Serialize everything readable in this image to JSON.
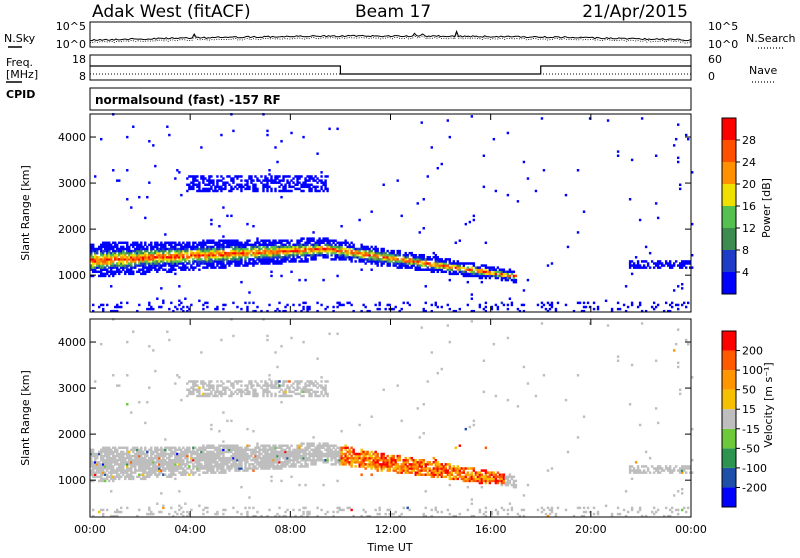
{
  "header": {
    "station": "Adak West (fitACF)",
    "beam": "Beam 17",
    "date": "21/Apr/2015"
  },
  "noise_panel": {
    "left_label": "N.Sky",
    "right_label": "N.Search",
    "left_ticks": [
      "10^5",
      "10^0"
    ],
    "right_ticks": [
      "10^5",
      "10^0"
    ]
  },
  "freq_panel": {
    "left_label_line1": "Freq.",
    "left_label_line2": "[MHz]",
    "right_label": "Nave",
    "left_ticks": [
      "18",
      "8"
    ],
    "right_ticks": [
      "60",
      "0"
    ],
    "cpid_label": "CPID",
    "cpid_text": "normalsound (fast) -157 RF"
  },
  "colors": {
    "power": [
      "#0000ff",
      "#1e3cc8",
      "#3c8c50",
      "#55c050",
      "#f0e000",
      "#ff9000",
      "#ff5000",
      "#ff0000"
    ],
    "velocity": [
      "#ff0000",
      "#ff5a00",
      "#ff9600",
      "#f5c000",
      "#bebebe",
      "#6ec83c",
      "#2d9450",
      "#1e50aa",
      "#0000ff"
    ]
  },
  "chart_data": [
    {
      "type": "heatmap",
      "name": "power",
      "ylabel": "Slant Range [km]",
      "ylim": [
        200,
        4500
      ],
      "xlim": [
        0,
        24
      ],
      "yticks": [
        "1000",
        "2000",
        "3000",
        "4000"
      ],
      "colorbar_label": "Power [dB]",
      "colorbar_ticks": [
        "4",
        "8",
        "12",
        "16",
        "20",
        "24",
        "28"
      ],
      "colorbar_range": [
        0,
        32
      ]
    },
    {
      "type": "heatmap",
      "name": "velocity",
      "ylabel": "Slant Range [km]",
      "ylim": [
        200,
        4500
      ],
      "xlim": [
        0,
        24
      ],
      "yticks": [
        "1000",
        "2000",
        "3000",
        "4000"
      ],
      "colorbar_label": "Velocity [m s⁻¹]",
      "colorbar_ticks": [
        "200",
        "100",
        "50",
        "15",
        "-15",
        "-50",
        "-100",
        "-200"
      ],
      "xticks": [
        "00:00",
        "04:00",
        "08:00",
        "12:00",
        "16:00",
        "20:00",
        "00:00"
      ],
      "xlabel": "Time UT"
    }
  ]
}
